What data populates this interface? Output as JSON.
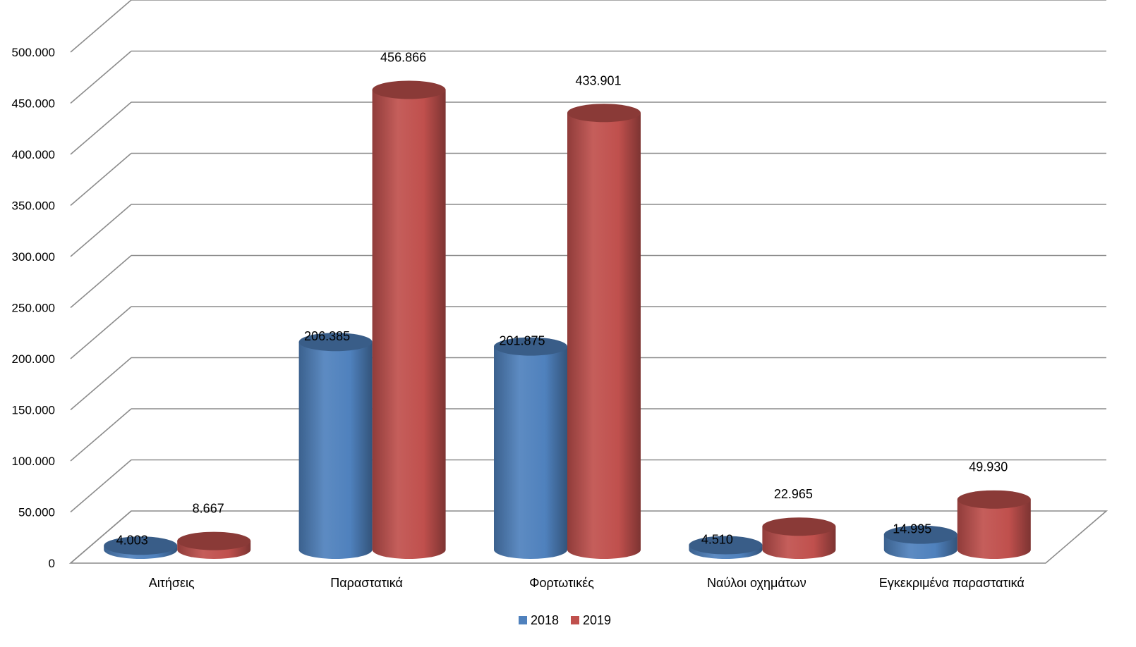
{
  "chart_data": {
    "type": "bar",
    "style": "3d-cylinder",
    "title": "",
    "xlabel": "",
    "ylabel": "",
    "categories": [
      "Αιτήσεις",
      "Παραστατικά",
      "Φορτωτικές",
      "Ναύλοι οχημάτων",
      "Εγκεκριμένα παραστατικά"
    ],
    "series": [
      {
        "name": "2018",
        "color": "#4F81BD",
        "values": [
          4003,
          206385,
          201875,
          4510,
          14995
        ],
        "labels": [
          "4.003",
          "206.385",
          "201.875",
          "4.510",
          "14.995"
        ]
      },
      {
        "name": "2019",
        "color": "#C0504D",
        "values": [
          8667,
          456866,
          433901,
          22965,
          49930
        ],
        "labels": [
          "8.667",
          "456.866",
          "433.901",
          "22.965",
          "49.930"
        ]
      }
    ],
    "ylim": [
      0,
      500000
    ],
    "yticks": [
      0,
      50000,
      100000,
      150000,
      200000,
      250000,
      300000,
      350000,
      400000,
      450000,
      500000
    ],
    "ytick_labels": [
      "0",
      "50.000",
      "100.000",
      "150.000",
      "200.000",
      "250.000",
      "300.000",
      "350.000",
      "400.000",
      "450.000",
      "500.000"
    ],
    "grid": true,
    "legend_position": "bottom"
  }
}
